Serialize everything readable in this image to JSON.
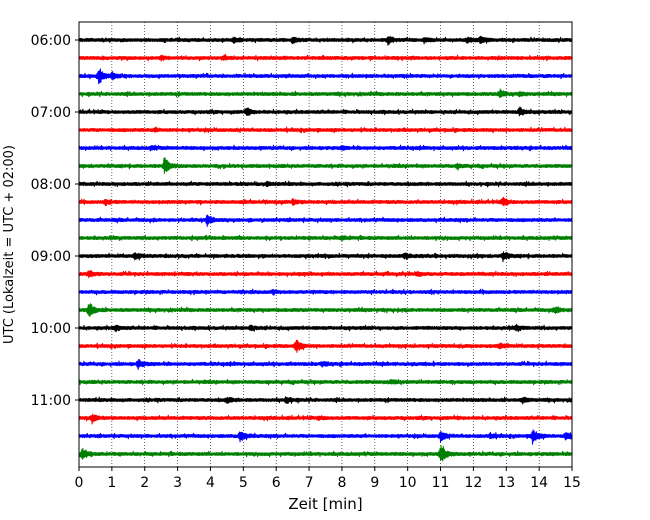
{
  "chart_data": {
    "type": "line",
    "title": "",
    "xlabel": "Zeit  [min]",
    "ylabel": "UTC (Lokalzeit = UTC + 02:00)",
    "xlim": [
      0,
      15
    ],
    "x_ticks": [
      0,
      1,
      2,
      3,
      4,
      5,
      6,
      7,
      8,
      9,
      10,
      11,
      12,
      13,
      14,
      15
    ],
    "x_tick_labels": [
      "0",
      "1",
      "2",
      "3",
      "4",
      "5",
      "6",
      "7",
      "8",
      "9",
      "10",
      "11",
      "12",
      "13",
      "14",
      "15"
    ],
    "y_tick_labels": [
      "06:00",
      "07:00",
      "08:00",
      "09:00",
      "10:00",
      "11:00"
    ],
    "grid": "vertical-dotted",
    "trace_colors": [
      "#000000",
      "#ff0000",
      "#0000ff",
      "#008000"
    ],
    "traces": [
      {
        "start": "06:00",
        "color": "#000000",
        "events": [
          {
            "min": 4.7,
            "amp": 0.25
          },
          {
            "min": 6.5,
            "amp": 0.3
          },
          {
            "min": 9.4,
            "amp": 0.5
          },
          {
            "min": 10.5,
            "amp": 0.3
          },
          {
            "min": 11.8,
            "amp": 0.3
          },
          {
            "min": 12.2,
            "amp": 0.4
          }
        ]
      },
      {
        "start": "06:15",
        "color": "#ff0000",
        "events": [
          {
            "min": 2.5,
            "amp": 0.2
          },
          {
            "min": 4.4,
            "amp": 0.2
          }
        ]
      },
      {
        "start": "06:30",
        "color": "#0000ff",
        "events": [
          {
            "min": 0.6,
            "amp": 1.0
          },
          {
            "min": 1.0,
            "amp": 0.4
          }
        ]
      },
      {
        "start": "06:45",
        "color": "#008000",
        "events": [
          {
            "min": 12.8,
            "amp": 0.5
          },
          {
            "min": 13.4,
            "amp": 0.2
          }
        ]
      },
      {
        "start": "07:00",
        "color": "#000000",
        "events": [
          {
            "min": 5.1,
            "amp": 0.4
          },
          {
            "min": 13.4,
            "amp": 0.5
          }
        ]
      },
      {
        "start": "07:15",
        "color": "#ff0000",
        "events": [
          {
            "min": 2.3,
            "amp": 0.15
          }
        ]
      },
      {
        "start": "07:30",
        "color": "#0000ff",
        "events": [
          {
            "min": 2.2,
            "amp": 0.2
          },
          {
            "min": 8.0,
            "amp": 0.15
          }
        ]
      },
      {
        "start": "07:45",
        "color": "#008000",
        "events": [
          {
            "min": 2.6,
            "amp": 1.1
          },
          {
            "min": 11.5,
            "amp": 0.2
          }
        ]
      },
      {
        "start": "08:00",
        "color": "#000000",
        "events": [
          {
            "min": 5.7,
            "amp": 0.2
          }
        ]
      },
      {
        "start": "08:15",
        "color": "#ff0000",
        "events": [
          {
            "min": 0.8,
            "amp": 0.3
          },
          {
            "min": 6.5,
            "amp": 0.3
          },
          {
            "min": 12.9,
            "amp": 0.5
          }
        ]
      },
      {
        "start": "08:30",
        "color": "#0000ff",
        "events": [
          {
            "min": 3.9,
            "amp": 0.6
          }
        ]
      },
      {
        "start": "08:45",
        "color": "#008000",
        "events": [
          {
            "min": 8.0,
            "amp": 0.15
          }
        ]
      },
      {
        "start": "09:00",
        "color": "#000000",
        "events": [
          {
            "min": 1.7,
            "amp": 0.4
          },
          {
            "min": 9.9,
            "amp": 0.3
          },
          {
            "min": 12.9,
            "amp": 0.5
          }
        ]
      },
      {
        "start": "09:15",
        "color": "#ff0000",
        "events": [
          {
            "min": 0.3,
            "amp": 0.4
          },
          {
            "min": 10.3,
            "amp": 0.2
          }
        ]
      },
      {
        "start": "09:30",
        "color": "#0000ff",
        "events": [
          {
            "min": 5.9,
            "amp": 0.15
          }
        ]
      },
      {
        "start": "09:45",
        "color": "#008000",
        "events": [
          {
            "min": 0.3,
            "amp": 1.0
          },
          {
            "min": 14.5,
            "amp": 0.4
          }
        ]
      },
      {
        "start": "10:00",
        "color": "#000000",
        "events": [
          {
            "min": 1.1,
            "amp": 0.3
          },
          {
            "min": 5.2,
            "amp": 0.3
          },
          {
            "min": 13.3,
            "amp": 0.3
          }
        ]
      },
      {
        "start": "10:15",
        "color": "#ff0000",
        "events": [
          {
            "min": 6.6,
            "amp": 0.8
          },
          {
            "min": 12.8,
            "amp": 0.3
          }
        ]
      },
      {
        "start": "10:30",
        "color": "#0000ff",
        "events": [
          {
            "min": 1.8,
            "amp": 0.5
          },
          {
            "min": 7.4,
            "amp": 0.2
          }
        ]
      },
      {
        "start": "10:45",
        "color": "#008000",
        "events": [
          {
            "min": 9.5,
            "amp": 0.2
          }
        ]
      },
      {
        "start": "11:00",
        "color": "#000000",
        "events": [
          {
            "min": 4.5,
            "amp": 0.3
          },
          {
            "min": 6.3,
            "amp": 0.4
          },
          {
            "min": 13.5,
            "amp": 0.3
          }
        ]
      },
      {
        "start": "11:15",
        "color": "#ff0000",
        "events": [
          {
            "min": 0.4,
            "amp": 0.4
          },
          {
            "min": 7.3,
            "amp": 0.2
          }
        ]
      },
      {
        "start": "11:30",
        "color": "#0000ff",
        "events": [
          {
            "min": 4.9,
            "amp": 0.7
          },
          {
            "min": 11.0,
            "amp": 0.6
          },
          {
            "min": 12.5,
            "amp": 0.3
          },
          {
            "min": 13.8,
            "amp": 0.9
          },
          {
            "min": 14.8,
            "amp": 0.5
          }
        ]
      },
      {
        "start": "11:45",
        "color": "#008000",
        "events": [
          {
            "min": 0.1,
            "amp": 0.7
          },
          {
            "min": 11.0,
            "amp": 1.2
          }
        ]
      }
    ]
  }
}
